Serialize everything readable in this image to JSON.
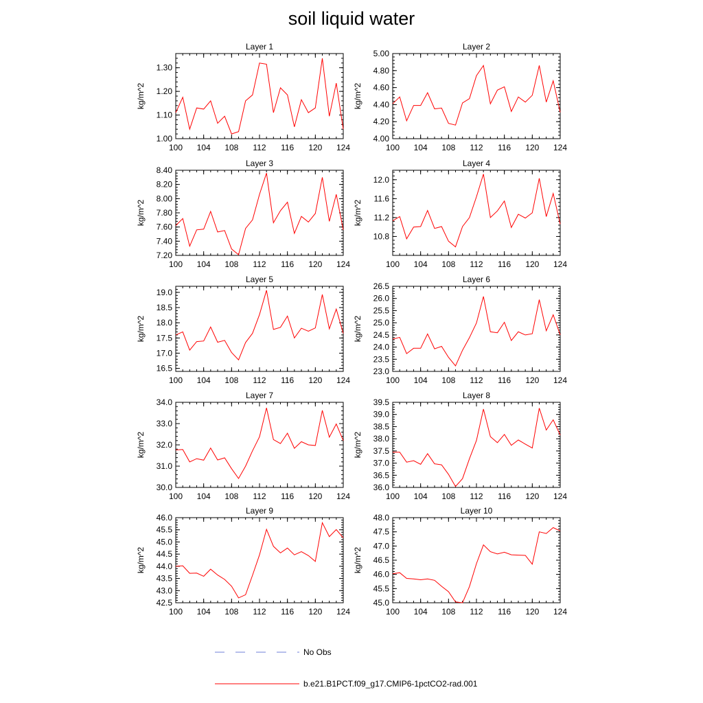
{
  "title": "soil liquid water",
  "legend": {
    "obs_label": "No Obs",
    "model_label": "b.e21.B1PCT.f09_g17.CMIP6-1pctCO2-rad.001",
    "obs_color": "#6f7fd8",
    "model_color": "#ff0000"
  },
  "colors": {
    "line": "#ff0000",
    "axis": "#000000"
  },
  "chart_data": [
    {
      "type": "line",
      "title": "Layer 1",
      "xlabel": "",
      "ylabel": "kg/m^2",
      "xlim": [
        100,
        124
      ],
      "ylim": [
        1.0,
        1.36
      ],
      "xticks": [
        100,
        104,
        108,
        112,
        116,
        120,
        124
      ],
      "yticks": [
        1.0,
        1.1,
        1.2,
        1.3
      ],
      "yticklabels": [
        "1.00",
        "1.10",
        "1.20",
        "1.30"
      ],
      "x": [
        100,
        101,
        102,
        103,
        104,
        105,
        106,
        107,
        108,
        109,
        110,
        111,
        112,
        113,
        114,
        115,
        116,
        117,
        118,
        119,
        120,
        121,
        122,
        123,
        124
      ],
      "series": [
        {
          "values": [
            1.11,
            1.175,
            1.04,
            1.13,
            1.125,
            1.16,
            1.065,
            1.095,
            1.02,
            1.03,
            1.16,
            1.185,
            1.32,
            1.315,
            1.11,
            1.215,
            1.185,
            1.05,
            1.165,
            1.11,
            1.13,
            1.34,
            1.095,
            1.235,
            1.04
          ]
        }
      ]
    },
    {
      "type": "line",
      "title": "Layer 2",
      "xlabel": "",
      "ylabel": "kg/m^2",
      "xlim": [
        100,
        124
      ],
      "ylim": [
        4.0,
        5.0
      ],
      "xticks": [
        100,
        104,
        108,
        112,
        116,
        120,
        124
      ],
      "yticks": [
        4.0,
        4.2,
        4.4,
        4.6,
        4.8,
        5.0
      ],
      "yticklabels": [
        "4.00",
        "4.20",
        "4.40",
        "4.60",
        "4.80",
        "5.00"
      ],
      "x": [
        100,
        101,
        102,
        103,
        104,
        105,
        106,
        107,
        108,
        109,
        110,
        111,
        112,
        113,
        114,
        115,
        116,
        117,
        118,
        119,
        120,
        121,
        122,
        123,
        124
      ],
      "series": [
        {
          "values": [
            4.41,
            4.49,
            4.21,
            4.39,
            4.39,
            4.54,
            4.35,
            4.36,
            4.18,
            4.16,
            4.42,
            4.47,
            4.74,
            4.86,
            4.41,
            4.57,
            4.61,
            4.32,
            4.49,
            4.43,
            4.51,
            4.86,
            4.43,
            4.68,
            4.31
          ]
        }
      ]
    },
    {
      "type": "line",
      "title": "Layer 3",
      "xlabel": "",
      "ylabel": "kg/m^2",
      "xlim": [
        100,
        124
      ],
      "ylim": [
        7.2,
        8.4
      ],
      "xticks": [
        100,
        104,
        108,
        112,
        116,
        120,
        124
      ],
      "yticks": [
        7.2,
        7.4,
        7.6,
        7.8,
        8.0,
        8.2,
        8.4
      ],
      "yticklabels": [
        "7.20",
        "7.40",
        "7.60",
        "7.80",
        "8.00",
        "8.20",
        "8.40"
      ],
      "x": [
        100,
        101,
        102,
        103,
        104,
        105,
        106,
        107,
        108,
        109,
        110,
        111,
        112,
        113,
        114,
        115,
        116,
        117,
        118,
        119,
        120,
        121,
        122,
        123,
        124
      ],
      "series": [
        {
          "values": [
            7.62,
            7.72,
            7.33,
            7.56,
            7.57,
            7.82,
            7.53,
            7.55,
            7.29,
            7.21,
            7.58,
            7.7,
            8.06,
            8.36,
            7.66,
            7.83,
            7.95,
            7.51,
            7.75,
            7.67,
            7.79,
            8.3,
            7.68,
            8.06,
            7.56
          ]
        }
      ]
    },
    {
      "type": "line",
      "title": "Layer 4",
      "xlabel": "",
      "ylabel": "kg/m^2",
      "xlim": [
        100,
        124
      ],
      "ylim": [
        10.4,
        12.2
      ],
      "xticks": [
        100,
        104,
        108,
        112,
        116,
        120,
        124
      ],
      "yticks": [
        10.8,
        11.2,
        11.6,
        12.0
      ],
      "yticklabels": [
        "10.8",
        "11.2",
        "11.6",
        "12.0"
      ],
      "x": [
        100,
        101,
        102,
        103,
        104,
        105,
        106,
        107,
        108,
        109,
        110,
        111,
        112,
        113,
        114,
        115,
        116,
        117,
        118,
        119,
        120,
        121,
        122,
        123,
        124
      ],
      "series": [
        {
          "values": [
            11.13,
            11.22,
            10.75,
            11.0,
            11.01,
            11.35,
            10.97,
            11.01,
            10.7,
            10.58,
            11.01,
            11.2,
            11.64,
            12.12,
            11.2,
            11.34,
            11.55,
            10.99,
            11.27,
            11.19,
            11.3,
            12.03,
            11.22,
            11.71,
            11.06
          ]
        }
      ]
    },
    {
      "type": "line",
      "title": "Layer 5",
      "xlabel": "",
      "ylabel": "kg/m^2",
      "xlim": [
        100,
        124
      ],
      "ylim": [
        16.4,
        19.2
      ],
      "xticks": [
        100,
        104,
        108,
        112,
        116,
        120,
        124
      ],
      "yticks": [
        16.5,
        17.0,
        17.5,
        18.0,
        18.5,
        19.0
      ],
      "yticklabels": [
        "16.5",
        "17.0",
        "17.5",
        "18.0",
        "18.5",
        "19.0"
      ],
      "x": [
        100,
        101,
        102,
        103,
        104,
        105,
        106,
        107,
        108,
        109,
        110,
        111,
        112,
        113,
        114,
        115,
        116,
        117,
        118,
        119,
        120,
        121,
        122,
        123,
        124
      ],
      "series": [
        {
          "values": [
            17.6,
            17.7,
            17.1,
            17.38,
            17.4,
            17.86,
            17.36,
            17.42,
            17.02,
            16.78,
            17.35,
            17.65,
            18.27,
            19.07,
            17.78,
            17.85,
            18.22,
            17.5,
            17.82,
            17.72,
            17.83,
            18.93,
            17.8,
            18.45,
            17.65
          ]
        }
      ]
    },
    {
      "type": "line",
      "title": "Layer 6",
      "xlabel": "",
      "ylabel": "kg/m^2",
      "xlim": [
        100,
        124
      ],
      "ylim": [
        23.0,
        26.5
      ],
      "xticks": [
        100,
        104,
        108,
        112,
        116,
        120,
        124
      ],
      "yticks": [
        23.0,
        23.5,
        24.0,
        24.5,
        25.0,
        25.5,
        26.0,
        26.5
      ],
      "yticklabels": [
        "23.0",
        "23.5",
        "24.0",
        "24.5",
        "25.0",
        "25.5",
        "26.0",
        "26.5"
      ],
      "x": [
        100,
        101,
        102,
        103,
        104,
        105,
        106,
        107,
        108,
        109,
        110,
        111,
        112,
        113,
        114,
        115,
        116,
        117,
        118,
        119,
        120,
        121,
        122,
        123,
        124
      ],
      "series": [
        {
          "values": [
            24.33,
            24.4,
            23.73,
            23.95,
            23.95,
            24.54,
            23.93,
            24.03,
            23.58,
            23.23,
            23.87,
            24.39,
            24.99,
            26.08,
            24.63,
            24.59,
            25.02,
            24.27,
            24.63,
            24.5,
            24.55,
            25.95,
            24.67,
            25.33,
            24.5
          ]
        }
      ]
    },
    {
      "type": "line",
      "title": "Layer 7",
      "xlabel": "",
      "ylabel": "kg/m^2",
      "xlim": [
        100,
        124
      ],
      "ylim": [
        30.0,
        34.0
      ],
      "xticks": [
        100,
        104,
        108,
        112,
        116,
        120,
        124
      ],
      "yticks": [
        30.0,
        31.0,
        32.0,
        33.0,
        34.0
      ],
      "yticklabels": [
        "30.0",
        "31.0",
        "32.0",
        "33.0",
        "34.0"
      ],
      "x": [
        100,
        101,
        102,
        103,
        104,
        105,
        106,
        107,
        108,
        109,
        110,
        111,
        112,
        113,
        114,
        115,
        116,
        117,
        118,
        119,
        120,
        121,
        122,
        123,
        124
      ],
      "series": [
        {
          "values": [
            31.76,
            31.78,
            31.2,
            31.35,
            31.28,
            31.85,
            31.29,
            31.39,
            30.88,
            30.42,
            31.0,
            31.72,
            32.38,
            33.74,
            32.25,
            32.06,
            32.55,
            31.84,
            32.15,
            32.0,
            31.97,
            33.62,
            32.36,
            32.98,
            32.2
          ]
        }
      ]
    },
    {
      "type": "line",
      "title": "Layer 8",
      "xlabel": "",
      "ylabel": "kg/m^2",
      "xlim": [
        100,
        124
      ],
      "ylim": [
        36.0,
        39.5
      ],
      "xticks": [
        100,
        104,
        108,
        112,
        116,
        120,
        124
      ],
      "yticks": [
        36.0,
        36.5,
        37.0,
        37.5,
        38.0,
        38.5,
        39.0,
        39.5
      ],
      "yticklabels": [
        "36.0",
        "36.5",
        "37.0",
        "37.5",
        "38.0",
        "38.5",
        "39.0",
        "39.5"
      ],
      "x": [
        100,
        101,
        102,
        103,
        104,
        105,
        106,
        107,
        108,
        109,
        110,
        111,
        112,
        113,
        114,
        115,
        116,
        117,
        118,
        119,
        120,
        121,
        122,
        123,
        124
      ],
      "series": [
        {
          "values": [
            37.45,
            37.45,
            37.04,
            37.1,
            36.95,
            37.39,
            36.97,
            36.93,
            36.54,
            36.04,
            36.36,
            37.18,
            37.93,
            39.22,
            38.09,
            37.84,
            38.18,
            37.73,
            37.95,
            37.78,
            37.62,
            39.26,
            38.36,
            38.78,
            38.15
          ]
        }
      ]
    },
    {
      "type": "line",
      "title": "Layer 9",
      "xlabel": "",
      "ylabel": "kg/m^2",
      "xlim": [
        100,
        124
      ],
      "ylim": [
        42.5,
        46.0
      ],
      "xticks": [
        100,
        104,
        108,
        112,
        116,
        120,
        124
      ],
      "yticks": [
        42.5,
        43.0,
        43.5,
        44.0,
        44.5,
        45.0,
        45.5,
        46.0
      ],
      "yticklabels": [
        "42.5",
        "43.0",
        "43.5",
        "44.0",
        "44.5",
        "45.0",
        "45.5",
        "46.0"
      ],
      "x": [
        100,
        101,
        102,
        103,
        104,
        105,
        106,
        107,
        108,
        109,
        110,
        111,
        112,
        113,
        114,
        115,
        116,
        117,
        118,
        119,
        120,
        121,
        122,
        123,
        124
      ],
      "series": [
        {
          "values": [
            44.0,
            44.02,
            43.71,
            43.72,
            43.59,
            43.88,
            43.64,
            43.46,
            43.18,
            42.7,
            42.83,
            43.63,
            44.47,
            45.52,
            44.82,
            44.55,
            44.75,
            44.47,
            44.6,
            44.44,
            44.2,
            45.79,
            45.22,
            45.51,
            45.17
          ]
        }
      ]
    },
    {
      "type": "line",
      "title": "Layer 10",
      "xlabel": "",
      "ylabel": "kg/m^2",
      "xlim": [
        100,
        124
      ],
      "ylim": [
        45.0,
        48.0
      ],
      "xticks": [
        100,
        104,
        108,
        112,
        116,
        120,
        124
      ],
      "yticks": [
        45.0,
        45.5,
        46.0,
        46.5,
        47.0,
        47.5,
        48.0
      ],
      "yticklabels": [
        "45.0",
        "45.5",
        "46.0",
        "46.5",
        "47.0",
        "47.5",
        "48.0"
      ],
      "x": [
        100,
        101,
        102,
        103,
        104,
        105,
        106,
        107,
        108,
        109,
        110,
        111,
        112,
        113,
        114,
        115,
        116,
        117,
        118,
        119,
        120,
        121,
        122,
        123,
        124
      ],
      "series": [
        {
          "values": [
            46.02,
            46.06,
            45.86,
            45.84,
            45.81,
            45.84,
            45.79,
            45.58,
            45.39,
            45.03,
            45.0,
            45.57,
            46.38,
            47.04,
            46.8,
            46.72,
            46.78,
            46.69,
            46.68,
            46.67,
            46.36,
            47.5,
            47.44,
            47.65,
            47.53
          ]
        }
      ]
    }
  ]
}
